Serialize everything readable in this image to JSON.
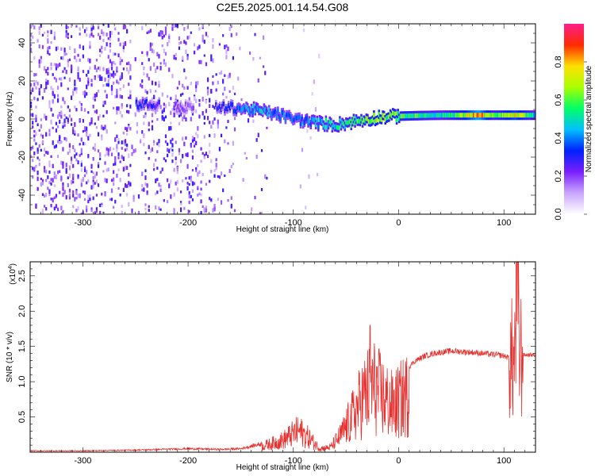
{
  "title": "C2E5.2025.001.14.54.G08",
  "chart_data": [
    {
      "type": "heatmap",
      "xlabel": "Height of straight line (km)",
      "ylabel": "Frequency (Hz)",
      "xlim": [
        -350,
        130
      ],
      "ylim": [
        -50,
        50
      ],
      "xticks": [
        "-300",
        "-200",
        "-100",
        "0",
        "100"
      ],
      "yticks": [
        "-40",
        "-20",
        "0",
        "20",
        "40"
      ],
      "colorbar": {
        "label": "Normalized spectral amplitude",
        "range": [
          0,
          1
        ],
        "ticks": [
          "0.0",
          "0.2",
          "0.4",
          "0.6",
          "0.8"
        ],
        "colors": [
          "#ffffff",
          "#c9a6ff",
          "#7a1fff",
          "#0020ff",
          "#00bfff",
          "#00ff66",
          "#a8ff00",
          "#ffe000",
          "#ff2a00",
          "#ff1e8c"
        ]
      },
      "signal_band": [
        {
          "x": -250,
          "freq": 8,
          "amp": 0.35
        },
        {
          "x": -200,
          "freq": 6,
          "amp": 0.2
        },
        {
          "x": -160,
          "freq": 6,
          "amp": 0.35
        },
        {
          "x": -140,
          "freq": 5,
          "amp": 0.5
        },
        {
          "x": -120,
          "freq": 3,
          "amp": 0.45
        },
        {
          "x": -100,
          "freq": 0,
          "amp": 0.4
        },
        {
          "x": -80,
          "freq": -2,
          "amp": 0.5
        },
        {
          "x": -60,
          "freq": -3,
          "amp": 0.55
        },
        {
          "x": -40,
          "freq": -1,
          "amp": 0.6
        },
        {
          "x": -20,
          "freq": 1,
          "amp": 0.7
        },
        {
          "x": 0,
          "freq": 1.5,
          "amp": 0.65
        },
        {
          "x": 20,
          "freq": 1.8,
          "amp": 0.6
        },
        {
          "x": 40,
          "freq": 2,
          "amp": 0.55
        },
        {
          "x": 60,
          "freq": 2,
          "amp": 0.7
        },
        {
          "x": 75,
          "freq": 2,
          "amp": 0.95
        },
        {
          "x": 90,
          "freq": 2,
          "amp": 0.6
        },
        {
          "x": 110,
          "freq": 2,
          "amp": 0.8
        },
        {
          "x": 130,
          "freq": 2,
          "amp": 0.5
        }
      ]
    },
    {
      "type": "line",
      "xlabel": "Height of straight line (km)",
      "ylabel": "SNR (10 * v/v)",
      "scale_label": "(x10",
      "scale_exp": "4",
      "xlim": [
        -350,
        130
      ],
      "ylim": [
        0,
        27000
      ],
      "xticks": [
        "-300",
        "-200",
        "-100",
        "0",
        "100"
      ],
      "yticks": [
        "0.5",
        "1.0",
        "1.5",
        "2.0",
        "2.5"
      ],
      "line_color": "#e8312f",
      "series": [
        {
          "x": [
            -350,
            -300,
            -250,
            -200,
            -170,
            -150,
            -130,
            -110,
            -95,
            -85,
            -75,
            -65,
            -55,
            -45,
            -35,
            -25,
            -15,
            -5,
            5,
            15,
            25,
            35,
            50,
            70,
            90,
            100,
            105,
            110,
            112,
            115,
            120,
            130
          ],
          "values": [
            200,
            200,
            300,
            500,
            400,
            500,
            1200,
            2500,
            4500,
            3000,
            800,
            1000,
            3500,
            7000,
            11000,
            14000,
            11500,
            9500,
            11500,
            13000,
            13800,
            14200,
            14500,
            14300,
            14000,
            13800,
            13500,
            12500,
            23000,
            13800,
            13800,
            13800
          ]
        }
      ]
    }
  ]
}
